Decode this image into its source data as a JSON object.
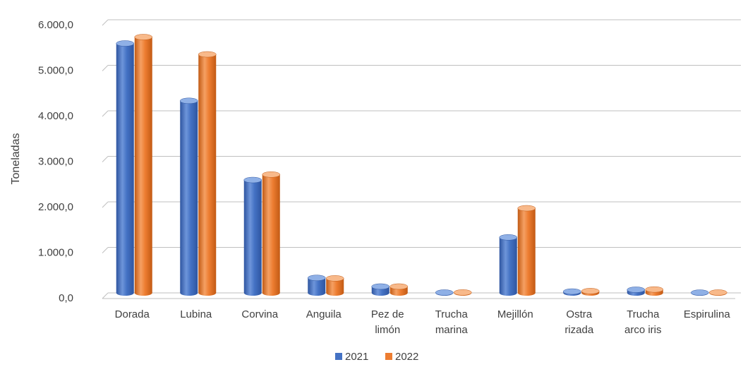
{
  "chart_data": {
    "type": "bar",
    "title": "",
    "xlabel": "",
    "ylabel": "Toneladas",
    "ylim": [
      0,
      6000
    ],
    "ytick_values": [
      0,
      1000,
      2000,
      3000,
      4000,
      5000,
      6000
    ],
    "ytick_labels": [
      "0,0",
      "1.000,0",
      "2.000,0",
      "3.000,0",
      "4.000,0",
      "5.000,0",
      "6.000,0"
    ],
    "categories": [
      [
        "Dorada"
      ],
      [
        "Lubina"
      ],
      [
        "Corvina"
      ],
      [
        "Anguila"
      ],
      [
        "Pez de",
        "limón"
      ],
      [
        "Trucha",
        "marina"
      ],
      [
        "Mejillón"
      ],
      [
        "Ostra",
        "rizada"
      ],
      [
        "Trucha",
        "arco iris"
      ],
      [
        "Espirulina"
      ]
    ],
    "series": [
      {
        "name": "2021",
        "color": "#4472C4",
        "values": [
          5480,
          4220,
          2480,
          330,
          140,
          8,
          1220,
          30,
          70,
          6
        ]
      },
      {
        "name": "2022",
        "color": "#ED7D31",
        "values": [
          5620,
          5240,
          2600,
          320,
          140,
          10,
          1860,
          40,
          75,
          8
        ]
      }
    ],
    "grid": true,
    "legend_position": "bottom"
  }
}
